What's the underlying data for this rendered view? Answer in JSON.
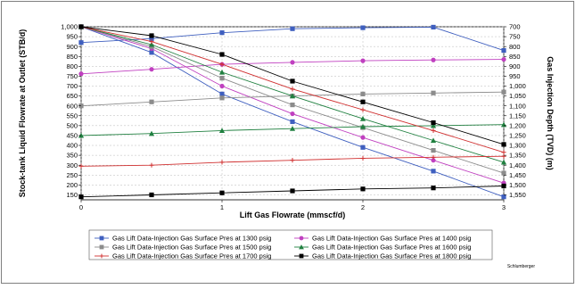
{
  "chart_data": {
    "type": "line",
    "xlabel": "Lift Gas Flowrate (mmscf/d)",
    "ylabel_left": "Stock-tank Liquid Flowrate at Outlet (STB/d)",
    "ylabel_right": "Gas Injection Depth (TVD) (m)",
    "xlim": [
      0,
      3
    ],
    "ylim_left": [
      125,
      1000
    ],
    "ylim_right": [
      700,
      1575
    ],
    "right_axis_inverted": true,
    "x_ticks": [
      0,
      1,
      2,
      3
    ],
    "x_tick_labels": [
      "0",
      "1",
      "2",
      "3"
    ],
    "left_ticks": [
      1000,
      950,
      900,
      850,
      800,
      750,
      700,
      650,
      600,
      550,
      500,
      450,
      400,
      350,
      300,
      250,
      200,
      150
    ],
    "left_tick_labels": [
      "1,000",
      "950",
      "900",
      "850",
      "800",
      "750",
      "700",
      "650",
      "600",
      "550",
      "500",
      "450",
      "400",
      "350",
      "300",
      "250",
      "200",
      "150"
    ],
    "right_ticks": [
      700,
      750,
      800,
      850,
      900,
      950,
      1000,
      1050,
      1100,
      1150,
      1200,
      1250,
      1300,
      1350,
      1400,
      1450,
      1500,
      1550
    ],
    "right_tick_labels": [
      "700",
      "750",
      "800",
      "850",
      "900",
      "950",
      "1,000",
      "1,050",
      "1,100",
      "1,150",
      "1,200",
      "1,250",
      "1,300",
      "1,350",
      "1,400",
      "1,450",
      "1,500",
      "1,550"
    ],
    "grid": true,
    "legend_position": "bottom",
    "x": [
      0,
      0.5,
      1,
      1.5,
      2,
      2.5,
      3
    ],
    "series": [
      {
        "name": "Gas Lift Data-Injection Gas Surface Pres at 1300 psig",
        "color": "#3f5fbf",
        "marker": "square",
        "liquid_rate": [
          920,
          940,
          970,
          990,
          995,
          998,
          880
        ],
        "injection_depth": [
          700,
          830,
          1040,
          1180,
          1310,
          1430,
          1560
        ]
      },
      {
        "name": "Gas Lift Data-Injection Gas Surface Pres at 1400 psig",
        "color": "#c040c0",
        "marker": "circle",
        "liquid_rate": [
          762,
          785,
          810,
          820,
          828,
          832,
          835
        ],
        "injection_depth": [
          700,
          810,
          1000,
          1140,
          1260,
          1375,
          1490
        ]
      },
      {
        "name": "Gas Lift Data-Injection Gas Surface Pres at 1500 psig",
        "color": "#8c8c8c",
        "marker": "square",
        "liquid_rate": [
          600,
          620,
          640,
          650,
          660,
          665,
          670
        ],
        "injection_depth": [
          700,
          800,
          960,
          1095,
          1210,
          1325,
          1440
        ]
      },
      {
        "name": "Gas Lift Data-Injection Gas Surface Pres at 1600 psig",
        "color": "#208040",
        "marker": "triangle",
        "liquid_rate": [
          450,
          460,
          475,
          485,
          495,
          500,
          505
        ],
        "injection_depth": [
          700,
          790,
          930,
          1050,
          1165,
          1275,
          1385
        ]
      },
      {
        "name": "Gas Lift Data-Injection Gas Surface Pres at 1700 psig",
        "color": "#d03030",
        "marker": "cross",
        "liquid_rate": [
          295,
          300,
          315,
          325,
          335,
          340,
          345
        ],
        "injection_depth": [
          700,
          775,
          890,
          1015,
          1120,
          1225,
          1335
        ]
      },
      {
        "name": "Gas Lift Data-Injection Gas Surface Pres at 1800 psig",
        "color": "#000000",
        "marker": "square",
        "liquid_rate": [
          140,
          150,
          160,
          170,
          180,
          185,
          195
        ],
        "injection_depth": [
          700,
          745,
          840,
          975,
          1080,
          1185,
          1295
        ]
      }
    ],
    "annotation": "Schlumberger"
  }
}
